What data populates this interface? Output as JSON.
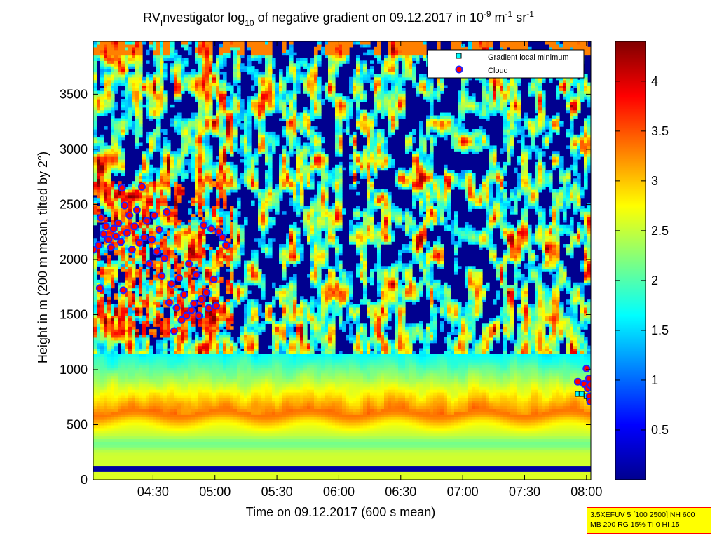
{
  "chart_data": {
    "type": "heatmap",
    "title_parts": {
      "a": "RV",
      "sub_a": "I",
      "b": "nvestigator log",
      "sub_b": "10",
      "c": " of negative gradient on 09.12.2017 in 10",
      "sup_c": "-9",
      "d": " m",
      "sup_d": "-1",
      "e": " sr",
      "sup_e": "-1"
    },
    "xlabel": "Time on 09.12.2017 (600 s mean)",
    "ylabel": "Height in m (200 m mean, tilted by 2°)",
    "x_ticks": [
      "04:30",
      "05:00",
      "05:30",
      "06:00",
      "06:30",
      "07:00",
      "07:30",
      "08:00"
    ],
    "x_tick_values_h": [
      4.5,
      5.0,
      5.5,
      6.0,
      6.5,
      7.0,
      7.5,
      8.0
    ],
    "xlim_h": [
      4.0167,
      8.035
    ],
    "y_ticks": [
      "0",
      "500",
      "1000",
      "1500",
      "2000",
      "2500",
      "3000",
      "3500"
    ],
    "y_tick_values": [
      0,
      500,
      1000,
      1500,
      2000,
      2500,
      3000,
      3500
    ],
    "ylim": [
      0,
      3980
    ],
    "colorbar": {
      "ticks": [
        "0.5",
        "1",
        "1.5",
        "2",
        "2.5",
        "3",
        "3.5",
        "4"
      ],
      "tick_values": [
        0.5,
        1,
        1.5,
        2,
        2.5,
        3,
        3.5,
        4
      ],
      "clim": [
        0,
        4.4
      ],
      "colormap": "jet"
    },
    "legend": {
      "position": "top-right",
      "entries": [
        {
          "label": "Gradient local minimum",
          "marker": "square",
          "color": "#00ffff"
        },
        {
          "label": "Cloud",
          "marker": "circle",
          "color": "#ff0000"
        }
      ]
    },
    "layers": {
      "surface_band": {
        "height_m": [
          80,
          130
        ],
        "value": 0.15
      },
      "aerosol_layer_core": {
        "height_m": 620,
        "value": 3.3
      },
      "aerosol_layer_top": {
        "height_m": 1000,
        "value": 1.8
      }
    },
    "cloud_points": [
      [
        4.02,
        2090
      ],
      [
        4.06,
        2130
      ],
      [
        4.08,
        2380
      ],
      [
        4.1,
        2230
      ],
      [
        4.12,
        2300
      ],
      [
        4.14,
        2180
      ],
      [
        4.16,
        2110
      ],
      [
        4.18,
        2280
      ],
      [
        4.2,
        2210
      ],
      [
        4.22,
        2330
      ],
      [
        4.24,
        2160
      ],
      [
        4.25,
        2650
      ],
      [
        4.27,
        2490
      ],
      [
        4.29,
        2240
      ],
      [
        4.31,
        2400
      ],
      [
        4.33,
        2090
      ],
      [
        4.35,
        2300
      ],
      [
        4.37,
        2450
      ],
      [
        4.39,
        2150
      ],
      [
        4.41,
        2660
      ],
      [
        4.43,
        2200
      ],
      [
        4.45,
        2350
      ],
      [
        4.47,
        1960
      ],
      [
        4.49,
        2180
      ],
      [
        4.51,
        2400
      ],
      [
        4.53,
        2070
      ],
      [
        4.55,
        2270
      ],
      [
        4.57,
        1850
      ],
      [
        4.59,
        2010
      ],
      [
        4.61,
        2430
      ],
      [
        4.63,
        1610
      ],
      [
        4.65,
        1780
      ],
      [
        4.67,
        1350
      ],
      [
        4.69,
        1560
      ],
      [
        4.71,
        1830
      ],
      [
        4.73,
        1450
      ],
      [
        4.75,
        1680
      ],
      [
        4.77,
        1490
      ],
      [
        4.79,
        1960
      ],
      [
        4.81,
        1540
      ],
      [
        4.83,
        1600
      ],
      [
        4.85,
        1860
      ],
      [
        4.87,
        1490
      ],
      [
        4.89,
        1640
      ],
      [
        4.91,
        2310
      ],
      [
        4.93,
        1700
      ],
      [
        4.95,
        1560
      ],
      [
        4.97,
        2280
      ],
      [
        4.99,
        1820
      ],
      [
        5.01,
        1580
      ],
      [
        5.03,
        2250
      ],
      [
        5.06,
        2200
      ],
      [
        5.09,
        2130
      ],
      [
        4.07,
        1740
      ],
      [
        4.26,
        1720
      ],
      [
        7.93,
        890
      ],
      [
        7.98,
        870
      ],
      [
        8.0,
        1010
      ],
      [
        8.01,
        830
      ],
      [
        8.02,
        920
      ],
      [
        8.025,
        760
      ],
      [
        8.03,
        860
      ],
      [
        8.03,
        710
      ]
    ],
    "gradient_minimum_points": [
      [
        7.93,
        780
      ],
      [
        7.96,
        780
      ],
      [
        8.0,
        760
      ],
      [
        8.02,
        740
      ],
      [
        8.03,
        720
      ]
    ]
  },
  "info_box": {
    "line1": "3.5XEFUV 5 [100 2500] NH 600",
    "line2": "MB 200 RG 15% TI 0 HI 15"
  }
}
